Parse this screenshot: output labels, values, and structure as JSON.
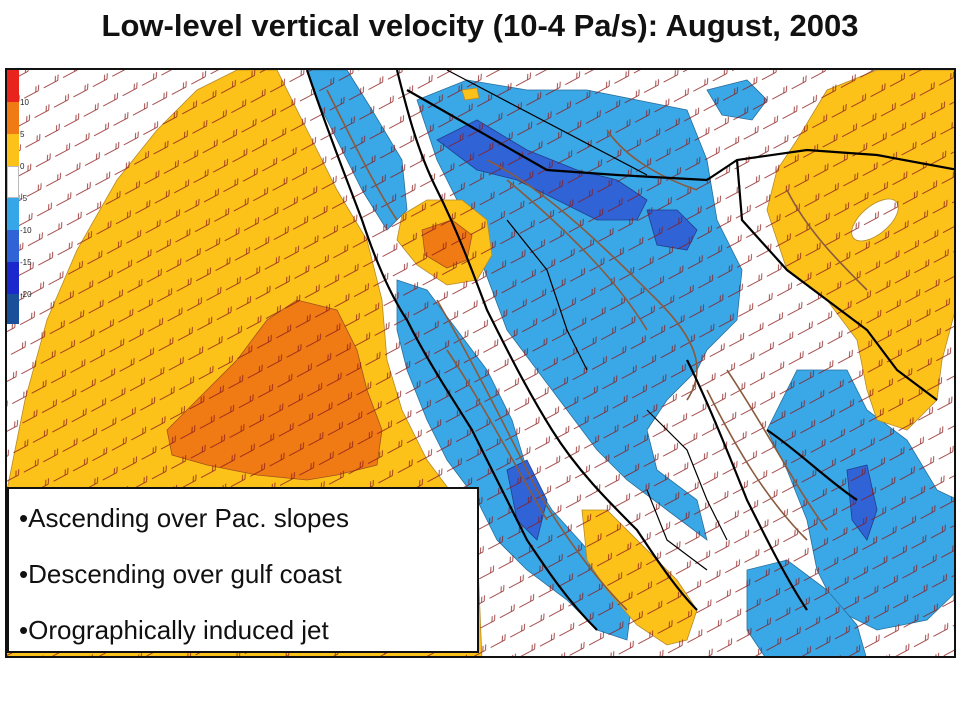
{
  "title": "Low-level vertical velocity (10-4 Pa/s): August, 2003",
  "legend": {
    "entries": [
      {
        "label": "10",
        "color": "#e8241c"
      },
      {
        "label": "5",
        "color": "#f07a14"
      },
      {
        "label": "0",
        "color": "#fcc21a"
      },
      {
        "label": "-5",
        "color": "#ffffff"
      },
      {
        "label": "-10",
        "color": "#35a6e8"
      },
      {
        "label": "-15",
        "color": "#2f63d6"
      },
      {
        "label": "-20",
        "color": "#1b28cc"
      },
      {
        "label": "",
        "color": "#1a4f9a"
      }
    ]
  },
  "colors": {
    "ascending_strong": "#1b62d0",
    "ascending": "#3aa7e6",
    "descending": "#fcc21a",
    "descending_strong": "#f07a14",
    "neutral": "#ffffff",
    "wind_barbs": "#8b1a1a",
    "topo_contours": "#8a5a3c",
    "coastline": "#000000"
  },
  "bullets": [
    "•Ascending over Pac. slopes",
    "•Descending over gulf coast",
    "•Orographically induced jet"
  ],
  "icons": [
    "wind-barb-icon"
  ]
}
